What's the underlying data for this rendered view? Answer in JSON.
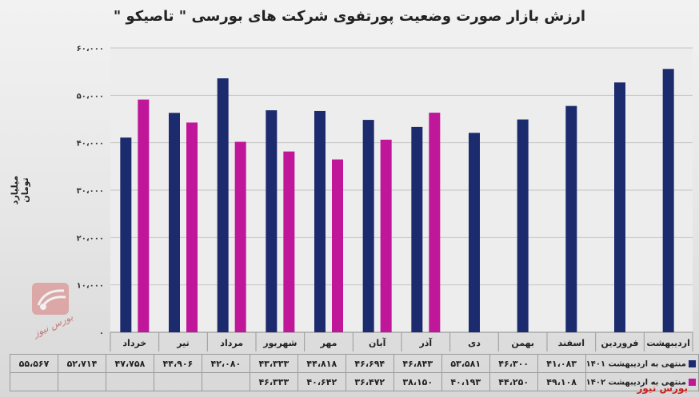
{
  "chart_data": {
    "type": "bar",
    "title": "ارزش بازار صورت وضعیت پورتفوی شرکت های بورسی \" تاصیکو \"",
    "ylabel": "میلیارد تومان",
    "ylim": [
      0,
      60000
    ],
    "y_ticks": [
      "۰",
      "۱۰،۰۰۰",
      "۲۰،۰۰۰",
      "۳۰،۰۰۰",
      "۴۰،۰۰۰",
      "۵۰،۰۰۰",
      "۶۰،۰۰۰"
    ],
    "grid": true,
    "categories": [
      "خرداد",
      "تیر",
      "مرداد",
      "شهریور",
      "مهر",
      "آبان",
      "آذر",
      "دی",
      "بهمن",
      "اسفند",
      "فروردین",
      "اردیبهشت"
    ],
    "series": [
      {
        "name": "منتهی به اردیبهشت ۱۴۰۱",
        "color": "#1c2a6e",
        "values": [
          41083,
          46300,
          53581,
          46843,
          46694,
          44818,
          43333,
          42080,
          44906,
          47758,
          52714,
          55567
        ],
        "labels": [
          "۴۱،۰۸۳",
          "۴۶،۳۰۰",
          "۵۳،۵۸۱",
          "۴۶،۸۴۳",
          "۴۶،۶۹۴",
          "۴۴،۸۱۸",
          "۴۳،۳۳۳",
          "۴۲،۰۸۰",
          "۴۴،۹۰۶",
          "۴۷،۷۵۸",
          "۵۲،۷۱۴",
          "۵۵،۵۶۷"
        ]
      },
      {
        "name": "منتهی به اردیبهشت ۱۴۰۲",
        "color": "#c0169a",
        "values": [
          49108,
          44250,
          40193,
          38150,
          36472,
          40642,
          46333,
          null,
          null,
          null,
          null,
          null
        ],
        "labels": [
          "۴۹،۱۰۸",
          "۴۴،۲۵۰",
          "۴۰،۱۹۳",
          "۳۸،۱۵۰",
          "۳۶،۴۷۲",
          "۴۰،۶۴۲",
          "۴۶،۳۳۳",
          "",
          "",
          "",
          "",
          ""
        ]
      }
    ]
  },
  "brand": "بورس نیوز",
  "watermark": "بورس نیوز"
}
